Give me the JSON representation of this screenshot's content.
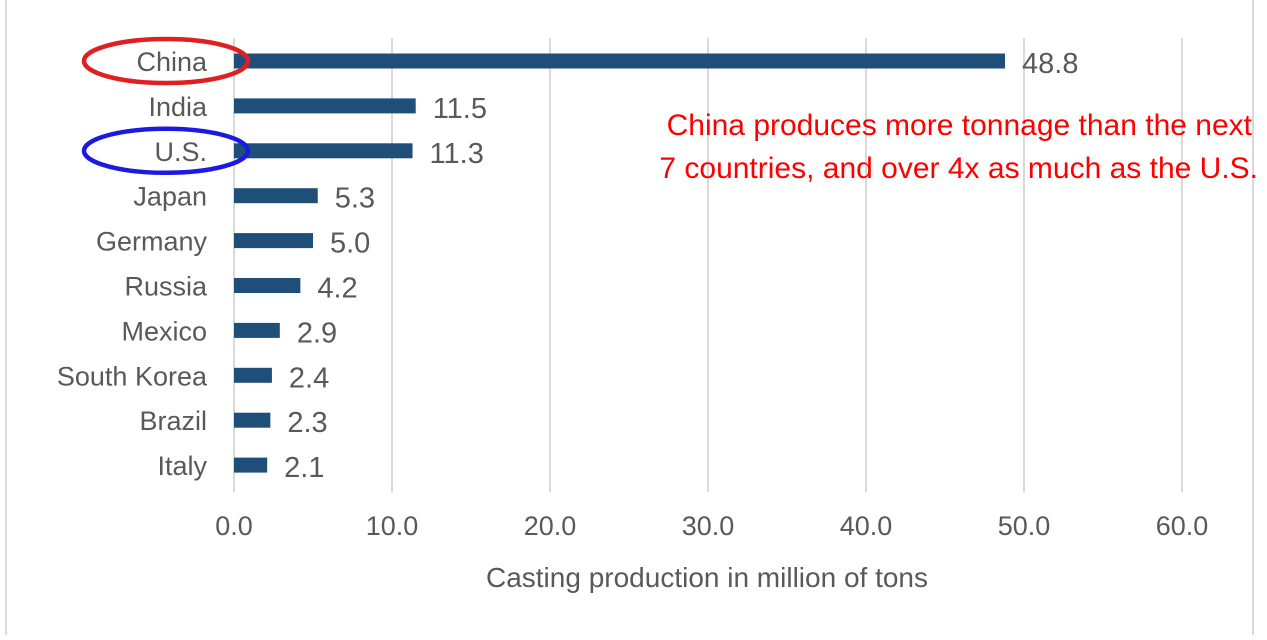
{
  "chart_data": {
    "type": "bar",
    "orientation": "horizontal",
    "categories": [
      "China",
      "India",
      "U.S.",
      "Japan",
      "Germany",
      "Russia",
      "Mexico",
      "South Korea",
      "Brazil",
      "Italy"
    ],
    "values": [
      48.8,
      11.5,
      11.3,
      5.3,
      5.0,
      4.2,
      2.9,
      2.4,
      2.3,
      2.1
    ],
    "value_labels": [
      "48.8",
      "11.5",
      "11.3",
      "5.3",
      "5.0",
      "4.2",
      "2.9",
      "2.4",
      "2.3",
      "2.1"
    ],
    "xlabel": "Casting production in million of tons",
    "xlim": [
      0,
      60
    ],
    "x_ticks": [
      0,
      10,
      20,
      30,
      40,
      50,
      60
    ],
    "x_tick_labels": [
      "0.0",
      "10.0",
      "20.0",
      "30.0",
      "40.0",
      "50.0",
      "60.0"
    ],
    "grid": "vertical",
    "colors": {
      "bar": "#1f4e79",
      "grid": "#d9d9d9",
      "text": "#595959",
      "annotation": "#ff0000",
      "highlight_china": "#e02020",
      "highlight_us": "#1a1ae0"
    },
    "annotation_lines": [
      "China produces more tonnage than the next",
      "7 countries, and over 4x as much  as the U.S."
    ],
    "highlights": [
      {
        "category": "China",
        "shape": "ellipse",
        "color": "red"
      },
      {
        "category": "U.S.",
        "shape": "ellipse",
        "color": "blue"
      }
    ]
  }
}
